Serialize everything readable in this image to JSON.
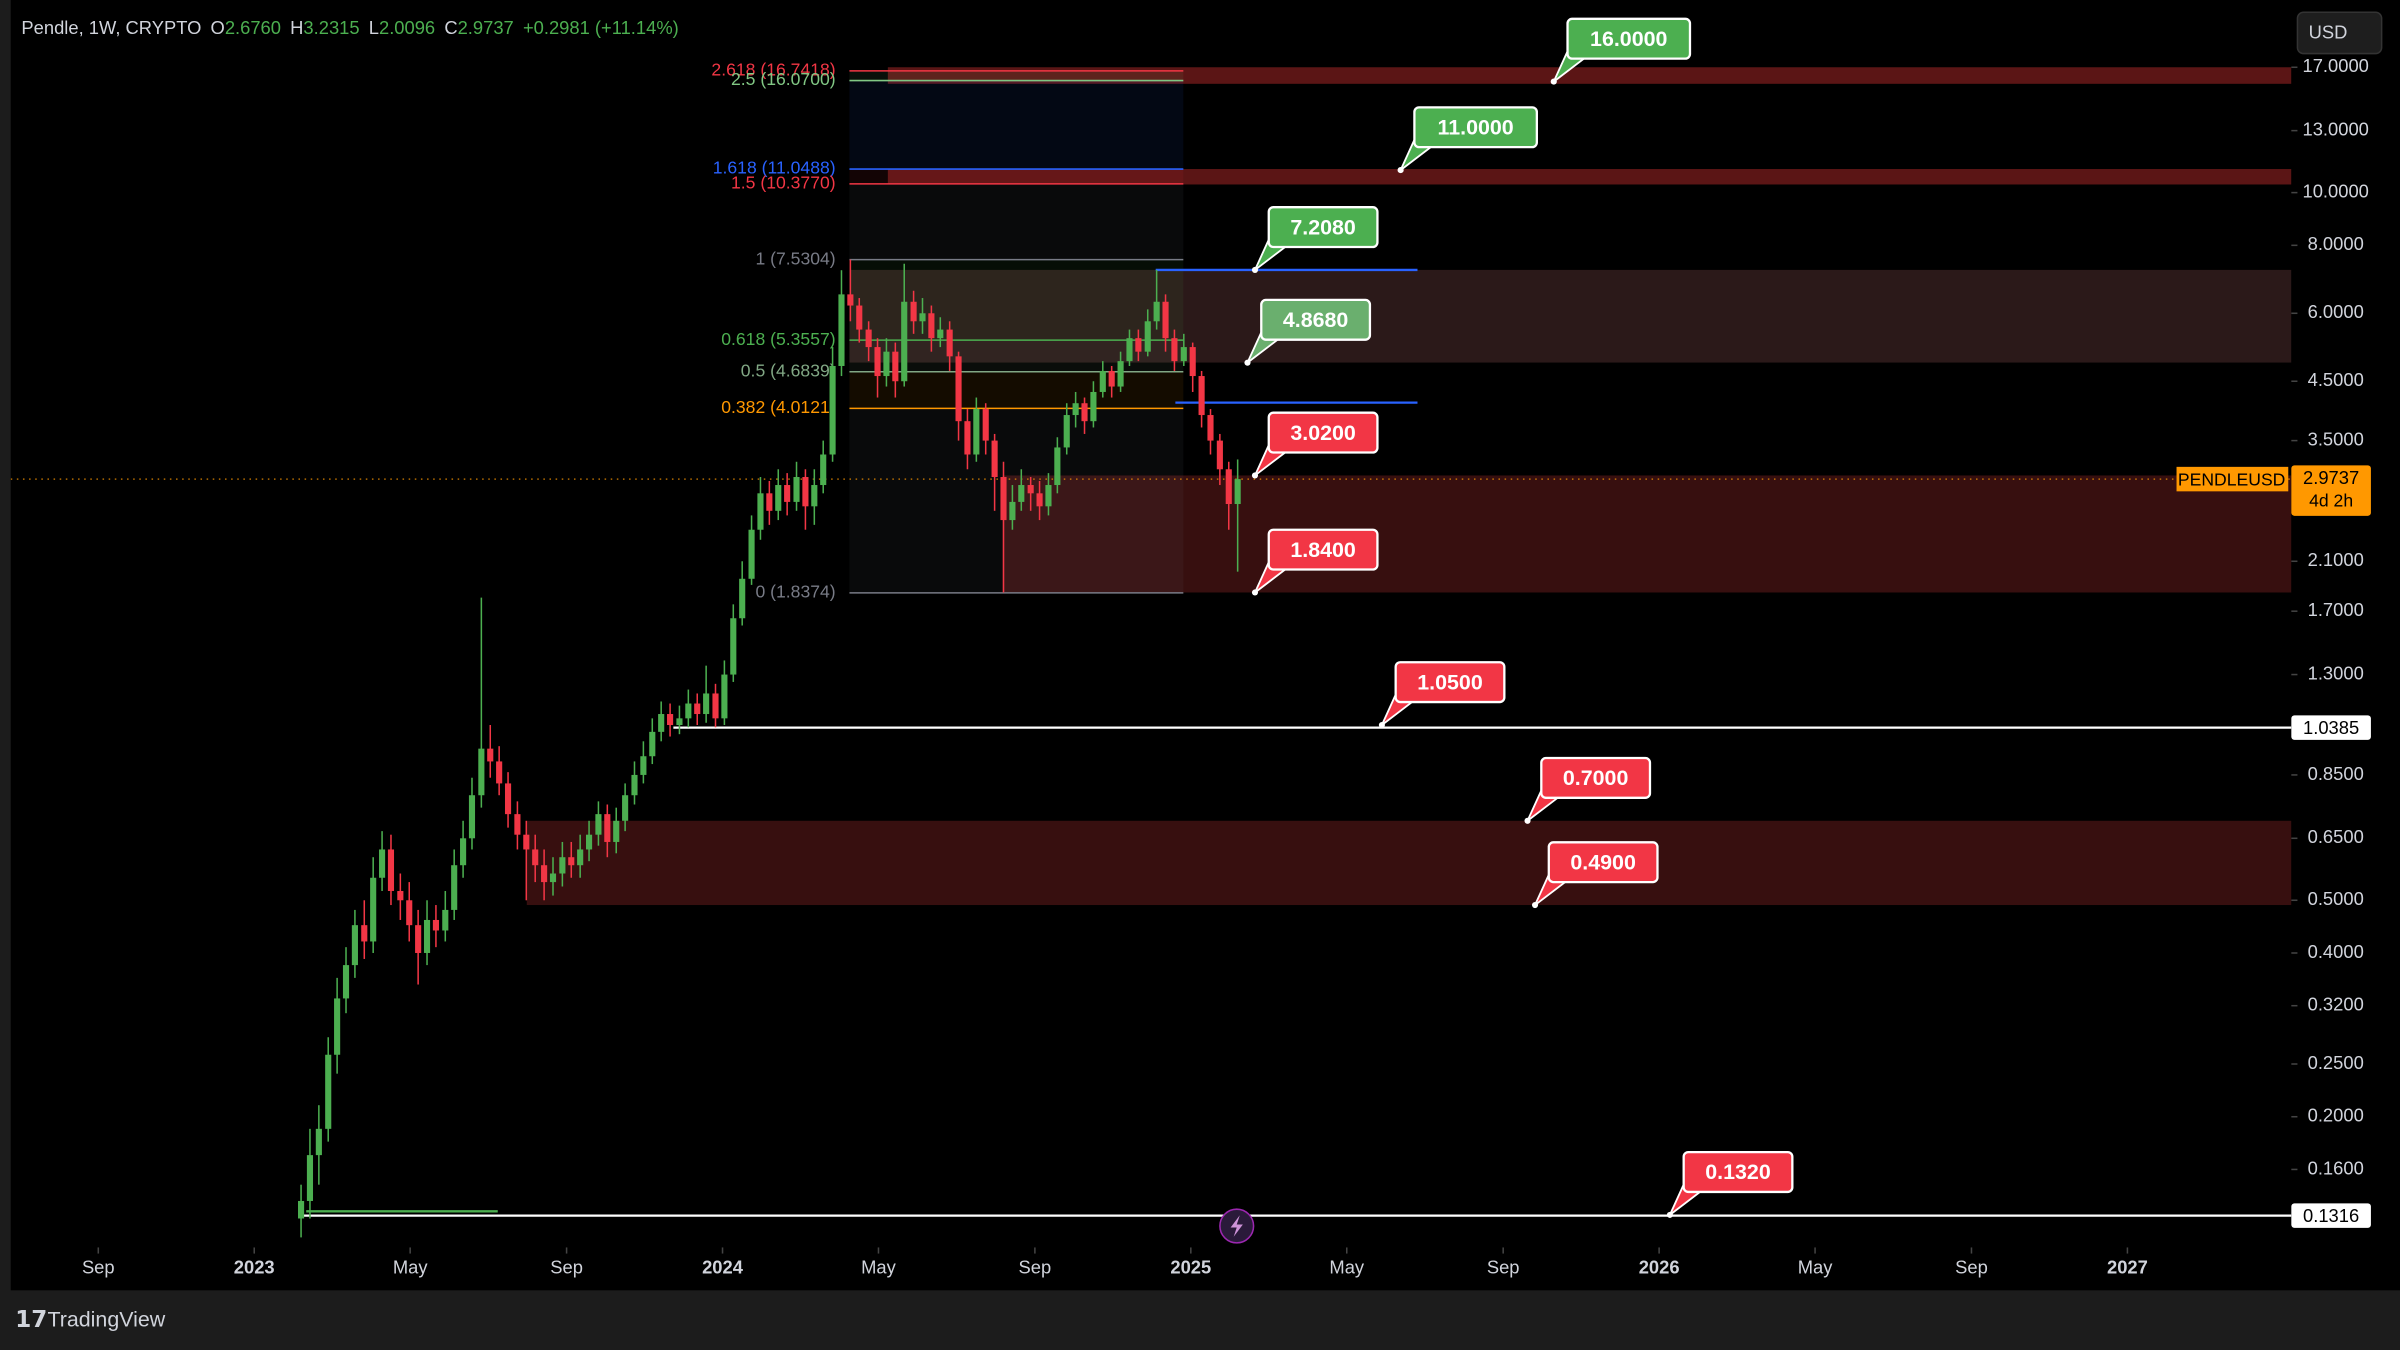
{
  "header": {
    "title": "Pendle, 1W, CRYPTO",
    "ohlc": [
      {
        "key": "O",
        "value": "2.6760"
      },
      {
        "key": "H",
        "value": "3.2315"
      },
      {
        "key": "L",
        "value": "2.0096"
      },
      {
        "key": "C",
        "value": "2.9737"
      }
    ],
    "change": "+0.2981 (+11.14%)",
    "currency": "USD"
  },
  "footer": {
    "brand": "TradingView"
  },
  "chart_data": {
    "type": "candlestick",
    "log_scale": true,
    "grid": false,
    "up_color": "#4caf50",
    "down_color": "#f23645",
    "xlim": [
      2022.48,
      2027.35
    ],
    "ylim": [
      0.115,
      22.6
    ],
    "xticks": [
      {
        "value": 2022.667,
        "label": "Sep"
      },
      2023,
      {
        "value": 2023.333,
        "label": "May"
      },
      {
        "value": 2023.667,
        "label": "Sep"
      },
      2024,
      {
        "value": 2024.333,
        "label": "May"
      },
      {
        "value": 2024.667,
        "label": "Sep"
      },
      2025,
      {
        "value": 2025.333,
        "label": "May"
      },
      {
        "value": 2025.667,
        "label": "Sep"
      },
      2026,
      {
        "value": 2026.333,
        "label": "May"
      },
      {
        "value": 2026.667,
        "label": "Sep"
      },
      2027
    ],
    "yticks": [
      {
        "value": 17,
        "label": "17.0000"
      },
      {
        "value": 13,
        "label": "13.0000"
      },
      {
        "value": 10,
        "label": "10.0000"
      },
      {
        "value": 8,
        "label": "8.0000"
      },
      {
        "value": 6,
        "label": "6.0000"
      },
      {
        "value": 4.5,
        "label": "4.5000"
      },
      {
        "value": 3.5,
        "label": "3.5000"
      },
      {
        "value": 2.1,
        "label": "2.1000"
      },
      {
        "value": 1.7,
        "label": "1.7000"
      },
      {
        "value": 1.3,
        "label": "1.3000"
      },
      {
        "value": 0.85,
        "label": "0.8500"
      },
      {
        "value": 0.65,
        "label": "0.6500"
      },
      {
        "value": 0.5,
        "label": "0.5000"
      },
      {
        "value": 0.4,
        "label": "0.4000"
      },
      {
        "value": 0.32,
        "label": "0.3200"
      },
      {
        "value": 0.25,
        "label": "0.2500"
      },
      {
        "value": 0.2,
        "label": "0.2000"
      },
      {
        "value": 0.16,
        "label": "0.1600"
      }
    ],
    "x": [
      2023.1,
      2023.119,
      2023.138,
      2023.158,
      2023.177,
      2023.196,
      2023.215,
      2023.235,
      2023.254,
      2023.273,
      2023.292,
      2023.312,
      2023.331,
      2023.35,
      2023.369,
      2023.388,
      2023.408,
      2023.427,
      2023.446,
      2023.465,
      2023.485,
      2023.504,
      2023.523,
      2023.542,
      2023.562,
      2023.581,
      2023.6,
      2023.619,
      2023.638,
      2023.658,
      2023.677,
      2023.696,
      2023.715,
      2023.735,
      2023.754,
      2023.773,
      2023.792,
      2023.812,
      2023.831,
      2023.85,
      2023.869,
      2023.888,
      2023.908,
      2023.927,
      2023.946,
      2023.965,
      2023.985,
      2024.004,
      2024.023,
      2024.042,
      2024.062,
      2024.081,
      2024.1,
      2024.119,
      2024.138,
      2024.158,
      2024.177,
      2024.196,
      2024.215,
      2024.235,
      2024.254,
      2024.273,
      2024.292,
      2024.312,
      2024.331,
      2024.35,
      2024.369,
      2024.388,
      2024.408,
      2024.427,
      2024.446,
      2024.465,
      2024.485,
      2024.504,
      2024.523,
      2024.542,
      2024.562,
      2024.581,
      2024.6,
      2024.619,
      2024.638,
      2024.658,
      2024.677,
      2024.696,
      2024.715,
      2024.735,
      2024.754,
      2024.773,
      2024.792,
      2024.812,
      2024.831,
      2024.85,
      2024.869,
      2024.888,
      2024.908,
      2024.927,
      2024.946,
      2024.965,
      2024.985,
      2025.004,
      2025.023,
      2025.042,
      2025.062,
      2025.081,
      2025.1
    ],
    "open": [
      0.13,
      0.14,
      0.17,
      0.19,
      0.26,
      0.33,
      0.38,
      0.45,
      0.42,
      0.55,
      0.62,
      0.52,
      0.5,
      0.45,
      0.4,
      0.46,
      0.44,
      0.48,
      0.58,
      0.65,
      0.78,
      0.95,
      0.9,
      0.82,
      0.72,
      0.66,
      0.62,
      0.58,
      0.54,
      0.56,
      0.6,
      0.58,
      0.62,
      0.66,
      0.72,
      0.64,
      0.7,
      0.78,
      0.85,
      0.92,
      1.02,
      1.1,
      1.05,
      1.08,
      1.15,
      1.1,
      1.2,
      1.08,
      1.3,
      1.65,
      1.95,
      2.4,
      2.8,
      2.6,
      2.9,
      2.7,
      3.0,
      2.65,
      2.9,
      3.3,
      4.8,
      6.5,
      6.2,
      5.6,
      5.2,
      4.6,
      5.1,
      4.5,
      6.3,
      5.8,
      6.0,
      5.4,
      5.6,
      5.0,
      3.8,
      3.3,
      4.0,
      3.5,
      3.0,
      2.5,
      2.7,
      2.9,
      2.8,
      2.65,
      2.9,
      3.4,
      3.9,
      4.1,
      3.8,
      4.3,
      4.7,
      4.4,
      4.9,
      5.4,
      5.1,
      5.8,
      6.3,
      5.4,
      4.9,
      5.2,
      4.6,
      3.9,
      3.5,
      3.1,
      2.676
    ],
    "high": [
      0.15,
      0.19,
      0.21,
      0.28,
      0.36,
      0.41,
      0.48,
      0.5,
      0.6,
      0.67,
      0.66,
      0.56,
      0.54,
      0.48,
      0.5,
      0.49,
      0.52,
      0.62,
      0.7,
      0.84,
      1.8,
      1.05,
      0.96,
      0.86,
      0.76,
      0.7,
      0.66,
      0.62,
      0.6,
      0.64,
      0.64,
      0.66,
      0.7,
      0.76,
      0.75,
      0.74,
      0.82,
      0.9,
      0.98,
      1.08,
      1.16,
      1.15,
      1.14,
      1.22,
      1.2,
      1.35,
      1.25,
      1.38,
      1.75,
      2.1,
      2.55,
      3.0,
      2.95,
      3.1,
      3.05,
      3.2,
      3.1,
      3.1,
      3.5,
      5.2,
      7.2,
      7.53,
      6.4,
      5.8,
      5.4,
      5.4,
      5.3,
      7.4,
      6.6,
      6.4,
      6.2,
      5.9,
      5.8,
      5.1,
      4.0,
      4.2,
      4.1,
      3.6,
      3.2,
      2.9,
      3.1,
      3.0,
      2.95,
      3.05,
      3.55,
      4.1,
      4.3,
      4.2,
      4.5,
      4.9,
      4.8,
      5.1,
      5.6,
      5.6,
      6.1,
      7.21,
      6.5,
      5.6,
      5.5,
      5.3,
      4.7,
      4.0,
      3.6,
      3.2,
      3.2315
    ],
    "low": [
      0.12,
      0.13,
      0.15,
      0.18,
      0.24,
      0.31,
      0.36,
      0.39,
      0.4,
      0.52,
      0.49,
      0.46,
      0.42,
      0.35,
      0.38,
      0.41,
      0.42,
      0.46,
      0.55,
      0.62,
      0.74,
      0.84,
      0.78,
      0.68,
      0.62,
      0.5,
      0.54,
      0.5,
      0.51,
      0.53,
      0.55,
      0.55,
      0.59,
      0.63,
      0.6,
      0.61,
      0.67,
      0.75,
      0.82,
      0.89,
      0.98,
      1.0,
      1.01,
      1.04,
      1.05,
      1.06,
      1.04,
      1.05,
      1.26,
      1.6,
      1.9,
      2.3,
      2.45,
      2.5,
      2.55,
      2.6,
      2.4,
      2.45,
      2.8,
      3.2,
      4.6,
      5.8,
      5.3,
      4.9,
      4.2,
      4.4,
      4.2,
      4.4,
      5.5,
      5.5,
      5.1,
      5.2,
      4.7,
      3.5,
      3.1,
      3.2,
      3.3,
      2.6,
      1.84,
      2.4,
      2.6,
      2.6,
      2.5,
      2.55,
      2.8,
      3.3,
      3.7,
      3.6,
      3.7,
      4.2,
      4.2,
      4.3,
      4.8,
      4.9,
      5.0,
      5.6,
      5.1,
      4.7,
      4.8,
      4.3,
      3.7,
      3.3,
      2.9,
      2.4,
      2.0096
    ],
    "close": [
      0.14,
      0.17,
      0.19,
      0.26,
      0.33,
      0.38,
      0.45,
      0.42,
      0.55,
      0.62,
      0.52,
      0.5,
      0.45,
      0.4,
      0.46,
      0.44,
      0.48,
      0.58,
      0.65,
      0.78,
      0.95,
      0.9,
      0.82,
      0.72,
      0.66,
      0.62,
      0.58,
      0.54,
      0.56,
      0.6,
      0.58,
      0.62,
      0.66,
      0.72,
      0.64,
      0.7,
      0.78,
      0.85,
      0.92,
      1.02,
      1.1,
      1.05,
      1.08,
      1.15,
      1.1,
      1.2,
      1.08,
      1.3,
      1.65,
      1.95,
      2.4,
      2.8,
      2.6,
      2.9,
      2.7,
      3.0,
      2.65,
      2.9,
      3.3,
      4.8,
      6.5,
      6.2,
      5.6,
      5.2,
      4.6,
      5.1,
      4.5,
      6.3,
      5.8,
      6.0,
      5.4,
      5.6,
      5.0,
      3.8,
      3.3,
      4.0,
      3.5,
      3.0,
      2.5,
      2.7,
      2.9,
      2.8,
      2.65,
      2.9,
      3.4,
      3.9,
      4.1,
      3.8,
      4.3,
      4.7,
      4.4,
      4.9,
      5.4,
      5.1,
      5.8,
      6.3,
      5.4,
      4.9,
      5.2,
      4.6,
      3.9,
      3.5,
      3.1,
      2.676,
      2.9737
    ],
    "zones": [
      {
        "low": 15.85,
        "high": 17.0,
        "x0": 2024.353,
        "x1": 2027.35,
        "color": "#7a1c1c"
      },
      {
        "low": 10.35,
        "high": 11.05,
        "x0": 2024.353,
        "x1": 2027.35,
        "color": "#7a1c1c"
      },
      {
        "low": 4.87,
        "high": 7.21,
        "x0": 2024.271,
        "x1": 2027.35,
        "color": "#3a2222"
      },
      {
        "low": 1.84,
        "high": 3.02,
        "x0": 2024.598,
        "x1": 2027.35,
        "color": "#4a1414"
      },
      {
        "low": 0.49,
        "high": 0.7,
        "x0": 2023.582,
        "x1": 2027.35,
        "color": "#4a1414"
      }
    ],
    "levels": [
      {
        "value": 1.0385,
        "x0": 2023.895,
        "x1": 2027.35,
        "color": "#ffffff"
      },
      {
        "value": 0.1316,
        "x0": 2023.098,
        "x1": 2027.35,
        "color": "#ffffff"
      },
      {
        "value": 7.208,
        "x0": 2024.925,
        "x1": 2025.484,
        "color": "#2962ff"
      },
      {
        "value": 4.11,
        "x0": 2024.967,
        "x1": 2025.484,
        "color": "#2962ff"
      },
      {
        "value": 0.134,
        "x0": 2023.111,
        "x1": 2023.52,
        "color": "#4caf50"
      }
    ],
    "fib": {
      "x0": 2024.271,
      "x1": 2024.984,
      "levels": [
        {
          "value": 16.7418,
          "label": "2.618 (16.7418)",
          "color": "#f23645"
        },
        {
          "value": 16.07,
          "label": "2.5 (16.0700)",
          "color": "#81c784"
        },
        {
          "value": 11.0488,
          "label": "1.618 (11.0488)",
          "color": "#2962ff"
        },
        {
          "value": 10.377,
          "label": "1.5 (10.3770)",
          "color": "#f23645"
        },
        {
          "value": 7.5304,
          "label": "1 (7.5304)",
          "color": "#787b86"
        },
        {
          "value": 5.3557,
          "label": "0.618 (5.3557)",
          "color": "#4caf50"
        },
        {
          "value": 4.6839,
          "label": "0.5 (4.6839)",
          "color": "#81a784"
        },
        {
          "value": 4.0121,
          "label": "0.382 (4.0121)",
          "color": "#ff9800"
        },
        {
          "value": 1.8374,
          "label": "0 (1.8374)",
          "color": "#787b86"
        }
      ]
    },
    "callouts": [
      {
        "value": 16,
        "label": "16.0000",
        "x": 2025.775,
        "color": "#4caf50"
      },
      {
        "value": 11,
        "label": "11.0000",
        "x": 2025.448,
        "color": "#4caf50"
      },
      {
        "value": 7.208,
        "label": "7.2080",
        "x": 2025.137,
        "color": "#4caf50"
      },
      {
        "value": 4.868,
        "label": "4.8680",
        "x": 2025.121,
        "color": "#6aaf6e"
      },
      {
        "value": 3.02,
        "label": "3.0200",
        "x": 2025.137,
        "color": "#f23645"
      },
      {
        "value": 1.84,
        "label": "1.8400",
        "x": 2025.137,
        "color": "#f23645"
      },
      {
        "value": 1.05,
        "label": "1.0500",
        "x": 2025.408,
        "color": "#f23645"
      },
      {
        "value": 0.7,
        "label": "0.7000",
        "x": 2025.719,
        "color": "#f23645"
      },
      {
        "value": 0.49,
        "label": "0.4900",
        "x": 2025.735,
        "color": "#f23645"
      },
      {
        "value": 0.132,
        "label": "0.1320",
        "x": 2026.023,
        "color": "#f23645"
      }
    ],
    "price_markers": [
      {
        "value": 1.0385
      },
      {
        "value": 0.1316
      }
    ],
    "last_price": {
      "symbol": "PENDLEUSD",
      "value": 2.9737,
      "countdown": "4d 2h",
      "color": "#ff9800"
    }
  }
}
